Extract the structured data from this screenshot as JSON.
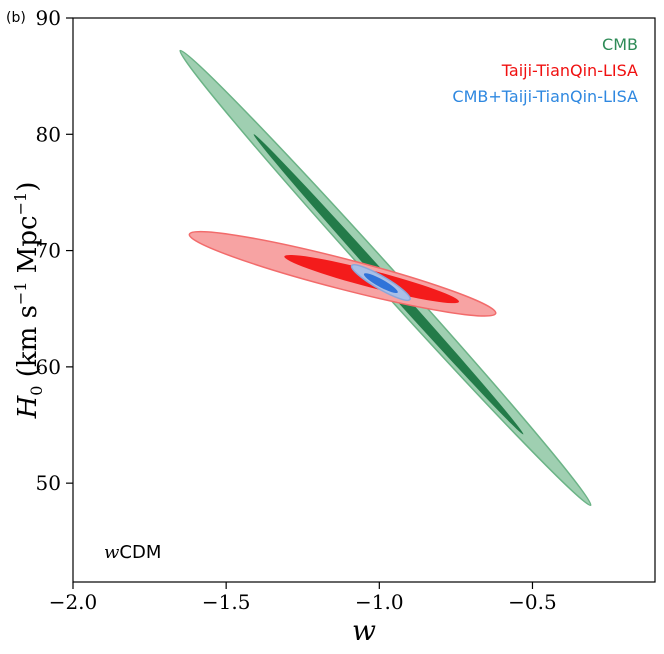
{
  "chart_data": {
    "type": "contour",
    "panel_label": "(b)",
    "xlabel": "w",
    "ylabel": "H0 (km s^-1 Mpc^-1)",
    "xlim": [
      -2.0,
      -0.1
    ],
    "ylim": [
      41.5,
      90
    ],
    "xticks": [
      -2.0,
      -1.5,
      -1.0,
      -0.5
    ],
    "xtick_labels": [
      "−2.0",
      "−1.5",
      "−1.0",
      "−0.5"
    ],
    "yticks": [
      50,
      60,
      70,
      80,
      90
    ],
    "ytick_labels": [
      "50",
      "60",
      "70",
      "80",
      "90"
    ],
    "annotation": {
      "italic": "w",
      "rest": "CDM"
    },
    "legend": [
      "CMB",
      "Taiji-TianQin-LISA",
      "CMB+Taiji-TianQin-LISA"
    ],
    "legend_position": "top-right",
    "series": [
      {
        "name": "CMB",
        "color_outer": "#9fcfb1",
        "color_inner": "#237b49",
        "edge": "#6bb386",
        "legend_color": "#2e8b57",
        "contours": [
          {
            "level": "2sigma",
            "endpoints": [
              [
                -1.65,
                87.2
              ],
              [
                -0.31,
                48.1
              ]
            ],
            "half_width_w": 0.048
          },
          {
            "level": "1sigma",
            "endpoints": [
              [
                -1.41,
                80.0
              ],
              [
                -0.53,
                54.2
              ]
            ],
            "half_width_w": 0.022
          }
        ]
      },
      {
        "name": "Taiji-TianQin-LISA",
        "color_outer": "#f7a3a3",
        "color_inner": "#f41b1b",
        "edge": "#f26b6b",
        "legend_color": "#f01010",
        "contours": [
          {
            "level": "2sigma",
            "endpoints": [
              [
                -1.62,
                71.4
              ],
              [
                -0.62,
                64.6
              ]
            ],
            "half_width_h": 1.35
          },
          {
            "level": "1sigma",
            "endpoints": [
              [
                -1.31,
                69.5
              ],
              [
                -0.74,
                65.6
              ]
            ],
            "half_width_h": 0.75
          }
        ]
      },
      {
        "name": "CMB+Taiji-TianQin-LISA",
        "color_outer": "#a9bfe6",
        "color_inner": "#2f73d9",
        "edge": "#8aa6da",
        "legend_color": "#2f88e0",
        "contours": [
          {
            "level": "2sigma",
            "endpoints": [
              [
                -1.09,
                68.7
              ],
              [
                -0.9,
                65.8
              ]
            ],
            "half_width_w": 0.042
          },
          {
            "level": "1sigma",
            "endpoints": [
              [
                -1.05,
                68.0
              ],
              [
                -0.94,
                66.4
              ]
            ],
            "half_width_w": 0.026
          }
        ]
      }
    ]
  }
}
